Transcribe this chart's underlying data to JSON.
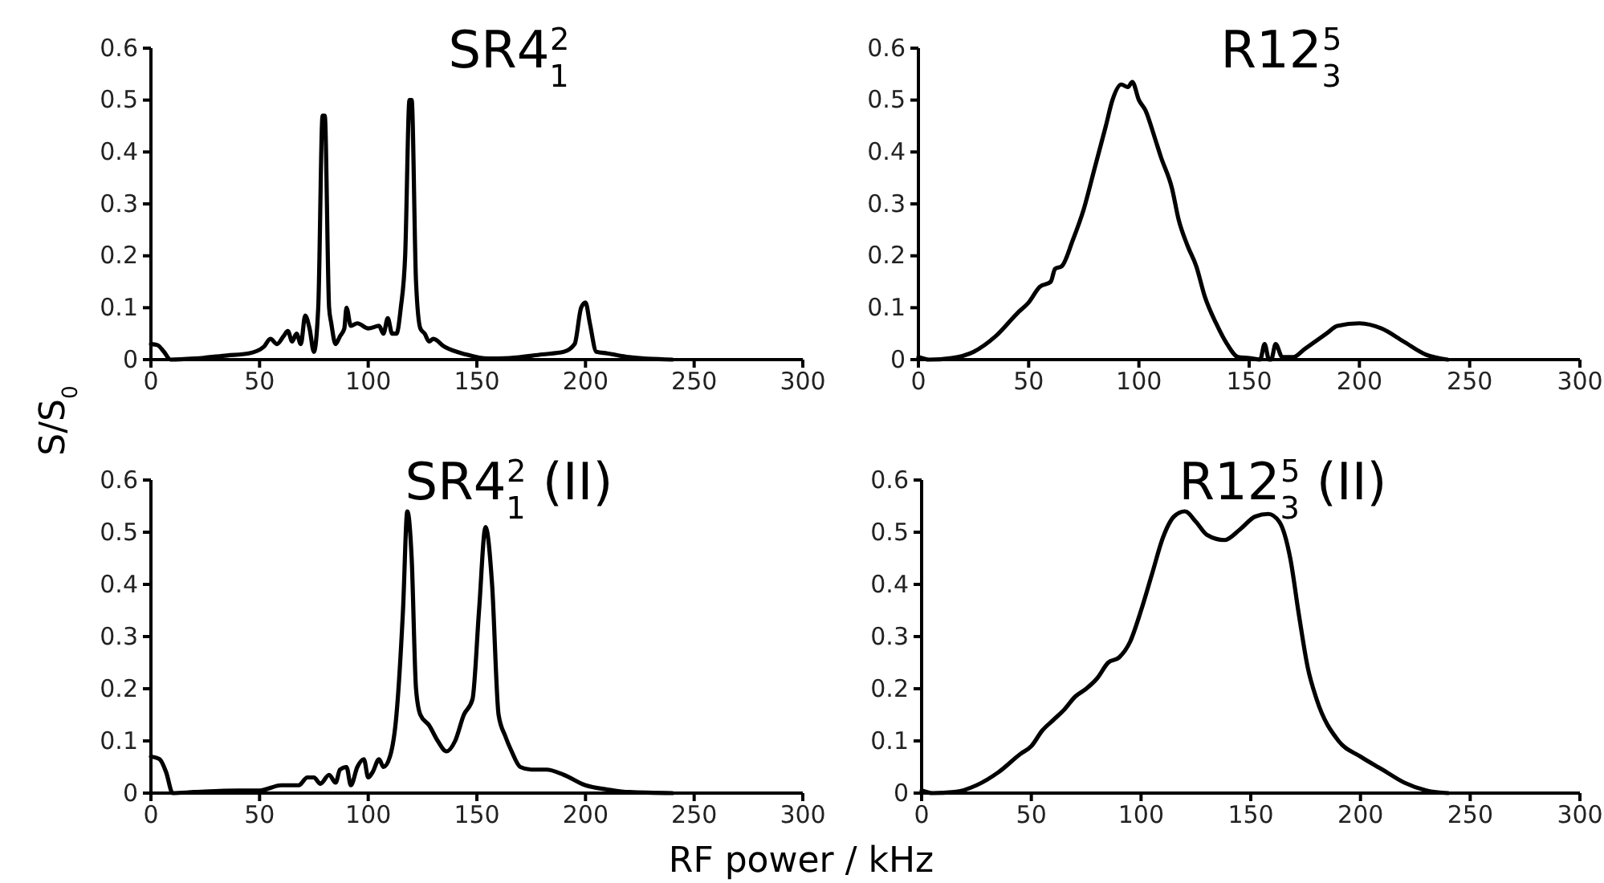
{
  "chart_data": [
    {
      "type": "line",
      "title": "SR4$_{1}$$^{2}$",
      "ylabel": "S/S$_{0}$",
      "xlim": [
        0,
        300
      ],
      "xticks": [
        0,
        50,
        100,
        150,
        200,
        250,
        300
      ],
      "ylim": [
        0,
        0.6
      ],
      "yticks": [
        0,
        0.1,
        0.2,
        0.3,
        0.4,
        0.5,
        0.6
      ],
      "x": [
        0,
        3,
        6,
        9,
        20,
        35,
        45,
        52,
        55,
        58,
        61,
        63,
        65,
        67,
        69,
        71,
        73,
        75,
        77,
        79,
        80,
        82,
        83,
        85,
        87,
        89,
        90,
        92,
        95,
        100,
        105,
        107,
        109,
        111,
        113,
        115,
        117,
        119,
        120,
        122,
        124,
        126,
        128,
        130,
        135,
        145,
        155,
        165,
        180,
        190,
        195,
        198,
        200,
        202,
        205,
        210,
        220,
        240
      ],
      "series": [
        {
          "color": "#000000",
          "values": [
            0.03,
            0.028,
            0.015,
            0,
            0.002,
            0.008,
            0.012,
            0.025,
            0.04,
            0.03,
            0.045,
            0.055,
            0.035,
            0.05,
            0.03,
            0.085,
            0.06,
            0.015,
            0.1,
            0.47,
            0.47,
            0.1,
            0.07,
            0.03,
            0.045,
            0.06,
            0.1,
            0.065,
            0.07,
            0.06,
            0.065,
            0.05,
            0.08,
            0.05,
            0.05,
            0.1,
            0.2,
            0.5,
            0.5,
            0.15,
            0.06,
            0.05,
            0.035,
            0.04,
            0.025,
            0.01,
            0.002,
            0.003,
            0.01,
            0.015,
            0.03,
            0.1,
            0.11,
            0.07,
            0.015,
            0.012,
            0.005,
            0
          ]
        }
      ]
    },
    {
      "type": "line",
      "title": "R12$_{3}$$^{5}$",
      "xlim": [
        0,
        300
      ],
      "xticks": [
        0,
        50,
        100,
        150,
        200,
        250,
        300
      ],
      "ylim": [
        0,
        0.6
      ],
      "yticks": [
        0,
        0.1,
        0.2,
        0.3,
        0.4,
        0.5,
        0.6
      ],
      "x": [
        0,
        5,
        15,
        25,
        35,
        45,
        50,
        55,
        60,
        62,
        65,
        70,
        75,
        80,
        85,
        88,
        92,
        95,
        97,
        100,
        103,
        107,
        110,
        115,
        118,
        122,
        126,
        130,
        135,
        140,
        145,
        150,
        155,
        157,
        159,
        160,
        162,
        165,
        170,
        175,
        180,
        185,
        190,
        200,
        210,
        220,
        230,
        240
      ],
      "series": [
        {
          "color": "#000000",
          "values": [
            0.005,
            0,
            0.003,
            0.015,
            0.045,
            0.09,
            0.11,
            0.14,
            0.15,
            0.175,
            0.18,
            0.23,
            0.29,
            0.37,
            0.45,
            0.5,
            0.53,
            0.525,
            0.535,
            0.5,
            0.48,
            0.43,
            0.39,
            0.33,
            0.27,
            0.22,
            0.18,
            0.12,
            0.07,
            0.03,
            0.005,
            0.003,
            0,
            0.03,
            0,
            0,
            0.03,
            0.005,
            0.005,
            0.02,
            0.035,
            0.05,
            0.065,
            0.07,
            0.06,
            0.035,
            0.01,
            0
          ]
        }
      ]
    },
    {
      "type": "line",
      "title": "SR4$_{1}$$^{2}$ (II)",
      "xlabel": "RF power / kHz",
      "xlim": [
        0,
        300
      ],
      "xticks": [
        0,
        50,
        100,
        150,
        200,
        250,
        300
      ],
      "ylim": [
        0,
        0.6
      ],
      "yticks": [
        0,
        0.1,
        0.2,
        0.3,
        0.4,
        0.5,
        0.6
      ],
      "x": [
        0,
        4,
        7,
        10,
        20,
        40,
        50,
        60,
        68,
        72,
        75,
        78,
        82,
        85,
        87,
        90,
        92,
        95,
        98,
        100,
        102,
        105,
        107,
        110,
        113,
        116,
        118,
        120,
        122,
        124,
        128,
        132,
        136,
        140,
        144,
        148,
        151,
        154,
        157,
        160,
        163,
        166,
        170,
        175,
        182,
        190,
        200,
        210,
        220,
        240
      ],
      "series": [
        {
          "color": "#000000",
          "values": [
            0.07,
            0.065,
            0.04,
            0,
            0.002,
            0.005,
            0.005,
            0.015,
            0.015,
            0.03,
            0.03,
            0.018,
            0.035,
            0.02,
            0.045,
            0.05,
            0.015,
            0.05,
            0.065,
            0.03,
            0.04,
            0.065,
            0.05,
            0.07,
            0.15,
            0.35,
            0.54,
            0.45,
            0.2,
            0.15,
            0.13,
            0.1,
            0.08,
            0.1,
            0.15,
            0.18,
            0.35,
            0.51,
            0.4,
            0.15,
            0.11,
            0.08,
            0.05,
            0.045,
            0.045,
            0.035,
            0.015,
            0.007,
            0.002,
            0
          ]
        }
      ]
    },
    {
      "type": "line",
      "title": "R12$_{3}$$^{5}$ (II)",
      "xlim": [
        0,
        300
      ],
      "xticks": [
        0,
        50,
        100,
        150,
        200,
        250,
        300
      ],
      "ylim": [
        0,
        0.6
      ],
      "yticks": [
        0,
        0.1,
        0.2,
        0.3,
        0.4,
        0.5,
        0.6
      ],
      "x": [
        0,
        5,
        15,
        25,
        35,
        45,
        50,
        55,
        60,
        65,
        70,
        75,
        80,
        85,
        90,
        95,
        100,
        105,
        110,
        115,
        120,
        125,
        130,
        138,
        145,
        152,
        158,
        163,
        168,
        172,
        176,
        180,
        190,
        200,
        210,
        220,
        230,
        240
      ],
      "series": [
        {
          "color": "#000000",
          "values": [
            0.005,
            0,
            0.002,
            0.015,
            0.04,
            0.075,
            0.09,
            0.12,
            0.14,
            0.16,
            0.185,
            0.2,
            0.22,
            0.25,
            0.26,
            0.29,
            0.35,
            0.42,
            0.49,
            0.53,
            0.54,
            0.52,
            0.495,
            0.485,
            0.505,
            0.53,
            0.535,
            0.52,
            0.45,
            0.34,
            0.24,
            0.18,
            0.1,
            0.07,
            0.045,
            0.02,
            0.005,
            0
          ]
        }
      ]
    }
  ]
}
